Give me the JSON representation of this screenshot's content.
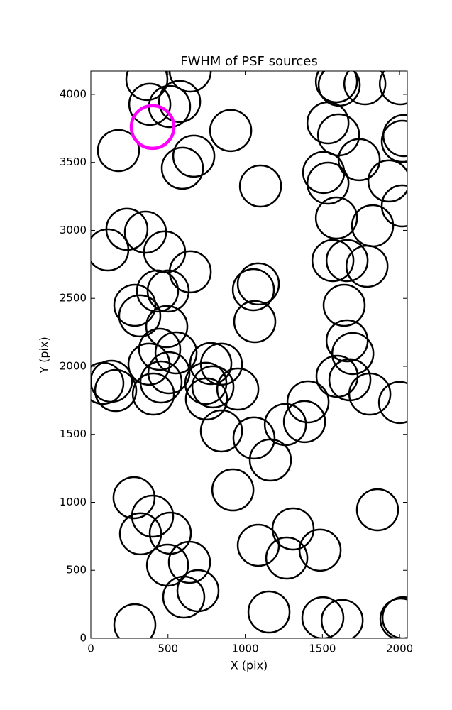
{
  "chart_data": {
    "type": "scatter",
    "title": "FWHM of PSF sources",
    "x_label": "X (pix)",
    "y_label": "Y (pix)",
    "xlim": [
      0,
      2050
    ],
    "ylim": [
      0,
      4172
    ],
    "xticks": [
      0,
      500,
      1000,
      1500,
      2000
    ],
    "yticks": [
      0,
      500,
      1000,
      1500,
      2000,
      2500,
      3000,
      3500,
      4000
    ],
    "series": [
      {
        "color": "#000000",
        "x": [
          363,
          382,
          510,
          575,
          644,
          179,
          593,
          667,
          906,
          1099,
          1591,
          1609,
          1775,
          2005,
          2028,
          2018,
          1536,
          1605,
          1738,
          1931,
          2018,
          1508,
          1536,
          1591,
          1825,
          234,
          354,
          110,
          478,
          644,
          501,
          432,
          285,
          317,
          492,
          1085,
          1053,
          1062,
          1568,
          1660,
          1789,
          1641,
          1660,
          1697,
          1595,
          1678,
          1807,
          2000,
          1407,
          1384,
          1260,
          446,
          552,
          377,
          506,
          455,
          405,
          78,
          133,
          161,
          777,
          846,
          745,
          791,
          749,
          952,
          846,
          1057,
          1163,
          920,
          280,
          400,
          322,
          515,
          497,
          639,
          602,
          694,
          285,
          1085,
          1310,
          1269,
          1485,
          1154,
          1503,
          1628,
          1857,
          2009,
          2023
        ],
        "y": [
          4110,
          3927,
          3911,
          3948,
          4172,
          3587,
          3457,
          3546,
          3734,
          3326,
          4094,
          4068,
          4078,
          4078,
          3697,
          3655,
          3791,
          3702,
          3520,
          3363,
          3180,
          3426,
          3347,
          3091,
          3034,
          3008,
          2987,
          2856,
          2841,
          2695,
          2554,
          2554,
          2449,
          2371,
          2292,
          2606,
          2564,
          2329,
          2778,
          2778,
          2736,
          2449,
          2188,
          2094,
          1927,
          1901,
          1796,
          1734,
          1739,
          1593,
          1572,
          2125,
          2099,
          2016,
          1953,
          1885,
          1796,
          1875,
          1890,
          1822,
          2021,
          2016,
          1875,
          1849,
          1760,
          1833,
          1525,
          1473,
          1311,
          1091,
          1034,
          898,
          768,
          773,
          538,
          559,
          303,
          350,
          99,
          684,
          804,
          590,
          648,
          193,
          151,
          131,
          945,
          141,
          151
        ]
      },
      {
        "color": "#ff00ff",
        "x": [
          400
        ],
        "y": [
          3760
        ]
      }
    ]
  }
}
